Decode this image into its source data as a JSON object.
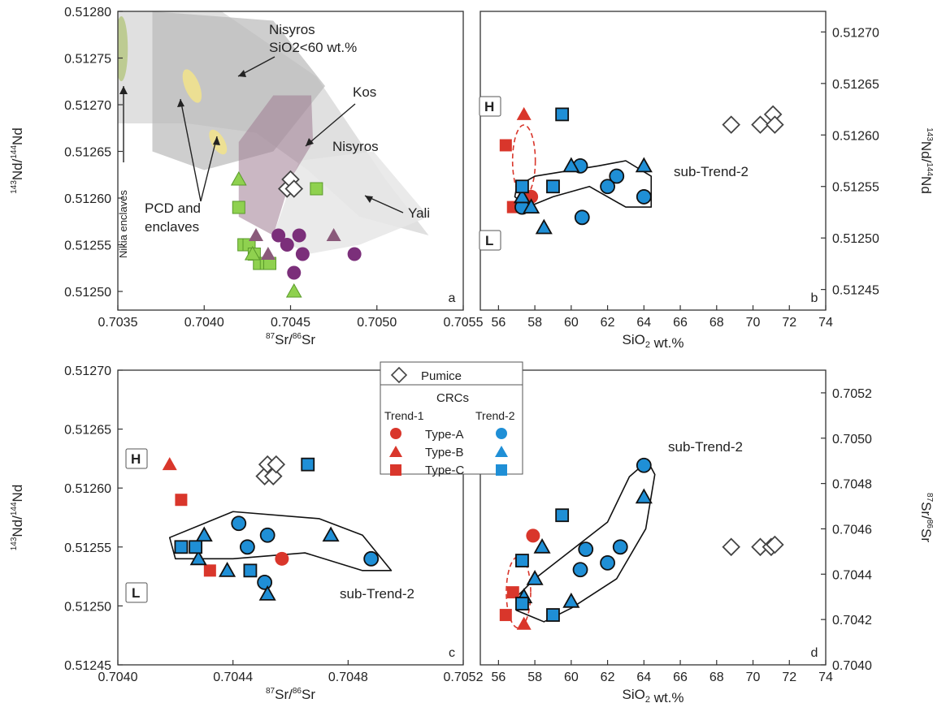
{
  "colors": {
    "trend1": "#d9362b",
    "trend2": "#1f8fd6",
    "pumice": "#ffffff",
    "field_green_fill": "#8fd14f",
    "field_green_purple": "#7b2f7a",
    "field_purple_mauve": "#8a5a7a",
    "nisyros_low_field": "#b9b9b9",
    "nisyros_field": "#d8d8d8",
    "kos_field": "#9f7b92",
    "pcd_field": "#f2e389",
    "nikia_field": "#b9c98a",
    "yali_field": "#e6e6e6"
  },
  "legend": {
    "pumice": "Pumice",
    "group": "CRCs",
    "trend1": "Trend-1",
    "trend2": "Trend-2",
    "type_a": "Type-A",
    "type_b": "Type-B",
    "type_c": "Type-C"
  },
  "chart_data": [
    {
      "panel": "a",
      "type": "scatter",
      "xlabel": "87Sr/86Sr",
      "ylabel": "143Nd/144Nd",
      "xlim": [
        0.7035,
        0.7055
      ],
      "ylim": [
        0.51248,
        0.5128
      ],
      "x_ticks": [
        "0.7035",
        "0.7040",
        "0.7045",
        "0.7050",
        "0.7055"
      ],
      "y_ticks": [
        "0.51250",
        "0.51255",
        "0.51260",
        "0.51265",
        "0.51270",
        "0.51275",
        "0.51280"
      ],
      "field_labels": {
        "nisyros_low": [
          "Nisyros",
          "SiO2<60 wt.%"
        ],
        "kos": "Kos",
        "nisyros": "Nisyros",
        "yali": "Yali",
        "pcd": [
          "PCD and",
          "enclaves"
        ],
        "nikia": "Nikia enclaves"
      },
      "series": [
        {
          "marker": "square",
          "color": "#8fd14f",
          "x": [
            0.7042,
            0.70423,
            0.70426,
            0.70429,
            0.70432,
            0.70436,
            0.70438,
            0.70465
          ],
          "y": [
            0.51259,
            0.51255,
            0.51255,
            0.51254,
            0.51253,
            0.51253,
            0.51253,
            0.51261
          ]
        },
        {
          "marker": "triangle",
          "color": "#8fd14f",
          "x": [
            0.7042,
            0.70428,
            0.70452
          ],
          "y": [
            0.51262,
            0.51254,
            0.5125
          ]
        },
        {
          "marker": "triangle",
          "color": "#8a5a7a",
          "x": [
            0.7043,
            0.70437,
            0.70475
          ],
          "y": [
            0.51256,
            0.51254,
            0.51256
          ]
        },
        {
          "marker": "circle",
          "color": "#7b2f7a",
          "x": [
            0.70443,
            0.70448,
            0.70452,
            0.70455,
            0.70457,
            0.70487
          ],
          "y": [
            0.51256,
            0.51255,
            0.51252,
            0.51256,
            0.51254,
            0.51254
          ]
        },
        {
          "marker": "diamond",
          "color": "#ffffff",
          "x": [
            0.70448,
            0.7045,
            0.70452
          ],
          "y": [
            0.51261,
            0.51262,
            0.51261
          ]
        }
      ]
    },
    {
      "panel": "b",
      "type": "scatter",
      "xlabel": "SiO2 wt.%",
      "ylabel": "143Nd/144Nd",
      "xlim": [
        55,
        74
      ],
      "ylim": [
        0.51243,
        0.51272
      ],
      "x_ticks": [
        "56",
        "58",
        "60",
        "62",
        "64",
        "66",
        "68",
        "70",
        "72",
        "74"
      ],
      "y_ticks": [
        "0.51245",
        "0.51250",
        "0.51255",
        "0.51260",
        "0.51265",
        "0.51270"
      ],
      "annotations": {
        "h": "H",
        "l": "L",
        "trend": "sub-Trend-2"
      },
      "series": [
        {
          "name": "Pumice",
          "marker": "diamond",
          "color": "#ffffff",
          "x": [
            68.8,
            70.4,
            71.1,
            71.2
          ],
          "y": [
            0.51261,
            0.51261,
            0.51262,
            0.51261
          ]
        },
        {
          "name": "Trend-1 Type-A",
          "marker": "circle",
          "color": "#d9362b",
          "x": [
            57.8
          ],
          "y": [
            0.51254
          ]
        },
        {
          "name": "Trend-1 Type-B",
          "marker": "triangle",
          "color": "#d9362b",
          "x": [
            57.4
          ],
          "y": [
            0.51262
          ]
        },
        {
          "name": "Trend-1 Type-C",
          "marker": "square",
          "color": "#d9362b",
          "x": [
            56.4,
            56.8
          ],
          "y": [
            0.51259,
            0.51253
          ]
        },
        {
          "name": "Trend-2 Type-A",
          "marker": "circle",
          "color": "#1f8fd6",
          "x": [
            57.3,
            60.6,
            60.5,
            62,
            62.5,
            64
          ],
          "y": [
            0.51253,
            0.51252,
            0.51257,
            0.51255,
            0.51256,
            0.51254
          ]
        },
        {
          "name": "Trend-2 Type-B",
          "marker": "triangle",
          "color": "#1f8fd6",
          "x": [
            57.3,
            57.8,
            58.5,
            60,
            64
          ],
          "y": [
            0.51254,
            0.51253,
            0.51251,
            0.51257,
            0.51257
          ]
        },
        {
          "name": "Trend-2 Type-C",
          "marker": "square",
          "color": "#1f8fd6",
          "x": [
            57.3,
            59,
            59.5
          ],
          "y": [
            0.51255,
            0.51255,
            0.51262
          ]
        }
      ]
    },
    {
      "panel": "c",
      "type": "scatter",
      "xlabel": "87Sr/86Sr",
      "ylabel": "143Nd/144Nd",
      "xlim": [
        0.704,
        0.7052
      ],
      "ylim": [
        0.51245,
        0.5127
      ],
      "x_ticks": [
        "0.7040",
        "0.7044",
        "0.7048",
        "0.7052"
      ],
      "y_ticks": [
        "0.51245",
        "0.51250",
        "0.51255",
        "0.51260",
        "0.51265",
        "0.51270"
      ],
      "annotations": {
        "h": "H",
        "l": "L",
        "trend": "sub-Trend-2"
      },
      "series": [
        {
          "name": "Pumice",
          "marker": "diamond",
          "color": "#ffffff",
          "x": [
            0.70451,
            0.70452,
            0.70454,
            0.70455
          ],
          "y": [
            0.51261,
            0.51262,
            0.51261,
            0.51262
          ]
        },
        {
          "name": "Trend-1 Type-A",
          "marker": "circle",
          "color": "#d9362b",
          "x": [
            0.70457
          ],
          "y": [
            0.51254
          ]
        },
        {
          "name": "Trend-1 Type-B",
          "marker": "triangle",
          "color": "#d9362b",
          "x": [
            0.70418
          ],
          "y": [
            0.51262
          ]
        },
        {
          "name": "Trend-1 Type-C",
          "marker": "square",
          "color": "#d9362b",
          "x": [
            0.70422,
            0.70432
          ],
          "y": [
            0.51259,
            0.51253
          ]
        },
        {
          "name": "Trend-2 Type-A",
          "marker": "circle",
          "color": "#1f8fd6",
          "x": [
            0.70442,
            0.70445,
            0.70451,
            0.70452,
            0.70488
          ],
          "y": [
            0.51257,
            0.51255,
            0.51252,
            0.51256,
            0.51254
          ]
        },
        {
          "name": "Trend-2 Type-B",
          "marker": "triangle",
          "color": "#1f8fd6",
          "x": [
            0.70428,
            0.7043,
            0.70438,
            0.70452,
            0.70474
          ],
          "y": [
            0.51254,
            0.51256,
            0.51253,
            0.51251,
            0.51256
          ]
        },
        {
          "name": "Trend-2 Type-C",
          "marker": "square",
          "color": "#1f8fd6",
          "x": [
            0.70422,
            0.70427,
            0.70446,
            0.70466
          ],
          "y": [
            0.51255,
            0.51255,
            0.51253,
            0.51262
          ]
        }
      ]
    },
    {
      "panel": "d",
      "type": "scatter",
      "xlabel": "SiO2 wt.%",
      "ylabel": "87Sr/86Sr",
      "xlim": [
        55,
        74
      ],
      "ylim": [
        0.704,
        0.7053
      ],
      "x_ticks": [
        "56",
        "58",
        "60",
        "62",
        "64",
        "66",
        "68",
        "70",
        "72",
        "74"
      ],
      "y_ticks": [
        "0.7040",
        "0.7042",
        "0.7044",
        "0.7046",
        "0.7048",
        "0.7050",
        "0.7052"
      ],
      "annotations": {
        "trend": "sub-Trend-2"
      },
      "series": [
        {
          "name": "Pumice",
          "marker": "diamond",
          "color": "#ffffff",
          "x": [
            68.8,
            70.4,
            71,
            71.2
          ],
          "y": [
            0.70452,
            0.70452,
            0.70452,
            0.70453
          ]
        },
        {
          "name": "Trend-1 Type-A",
          "marker": "circle",
          "color": "#d9362b",
          "x": [
            57.9
          ],
          "y": [
            0.70457
          ]
        },
        {
          "name": "Trend-1 Type-B",
          "marker": "triangle",
          "color": "#d9362b",
          "x": [
            57.4
          ],
          "y": [
            0.70418
          ]
        },
        {
          "name": "Trend-1 Type-C",
          "marker": "square",
          "color": "#d9362b",
          "x": [
            56.4,
            56.8
          ],
          "y": [
            0.70422,
            0.70432
          ]
        },
        {
          "name": "Trend-2 Type-A",
          "marker": "circle",
          "color": "#1f8fd6",
          "x": [
            60.5,
            60.8,
            62,
            62.7,
            64
          ],
          "y": [
            0.70442,
            0.70451,
            0.70445,
            0.70452,
            0.70488
          ]
        },
        {
          "name": "Trend-2 Type-B",
          "marker": "triangle",
          "color": "#1f8fd6",
          "x": [
            57.4,
            58,
            58.4,
            60,
            64
          ],
          "y": [
            0.7043,
            0.70438,
            0.70452,
            0.70428,
            0.70474
          ]
        },
        {
          "name": "Trend-2 Type-C",
          "marker": "square",
          "color": "#1f8fd6",
          "x": [
            57.3,
            57.3,
            59,
            59.5
          ],
          "y": [
            0.70446,
            0.70427,
            0.70422,
            0.70466
          ]
        }
      ]
    }
  ]
}
